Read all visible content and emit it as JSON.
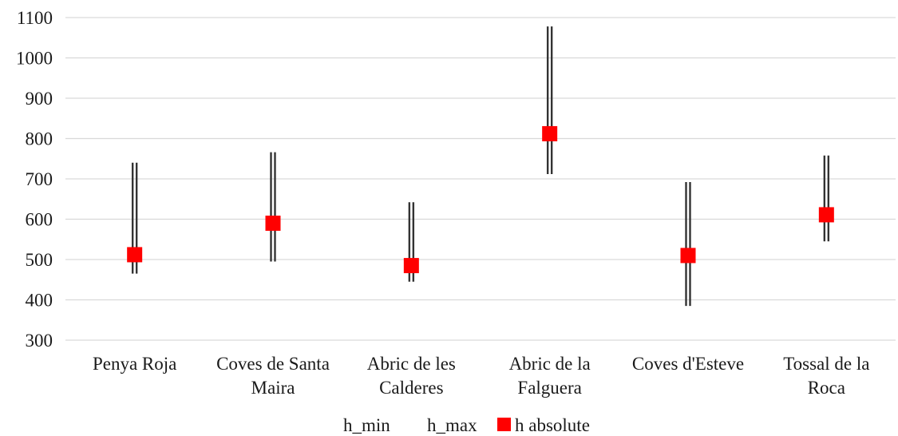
{
  "chart_data": {
    "type": "scatter",
    "title": "",
    "xlabel": "",
    "ylabel": "",
    "ylim": [
      300,
      1100
    ],
    "yticks": [
      300,
      400,
      500,
      600,
      700,
      800,
      900,
      1000,
      1100
    ],
    "grid": true,
    "legend_position": "bottom",
    "categories": [
      [
        "Penya Roja"
      ],
      [
        "Coves de Santa",
        "Maira"
      ],
      [
        "Abric de les",
        "Calderes"
      ],
      [
        "Abric de la",
        "Falguera"
      ],
      [
        "Coves d'Esteve"
      ],
      [
        "Tossal de la",
        "Roca"
      ]
    ],
    "series": [
      {
        "name": "h_min",
        "values": [
          465,
          495,
          445,
          712,
          385,
          545
        ]
      },
      {
        "name": "h_max",
        "values": [
          740,
          766,
          642,
          1078,
          692,
          758
        ]
      },
      {
        "name": "h absolute",
        "values": [
          512,
          590,
          485,
          812,
          510,
          611
        ]
      }
    ],
    "colors": {
      "range_line": "#333333",
      "marker": "#ff0000",
      "grid": "#d9d9d9",
      "text": "#1a1a1a"
    }
  }
}
